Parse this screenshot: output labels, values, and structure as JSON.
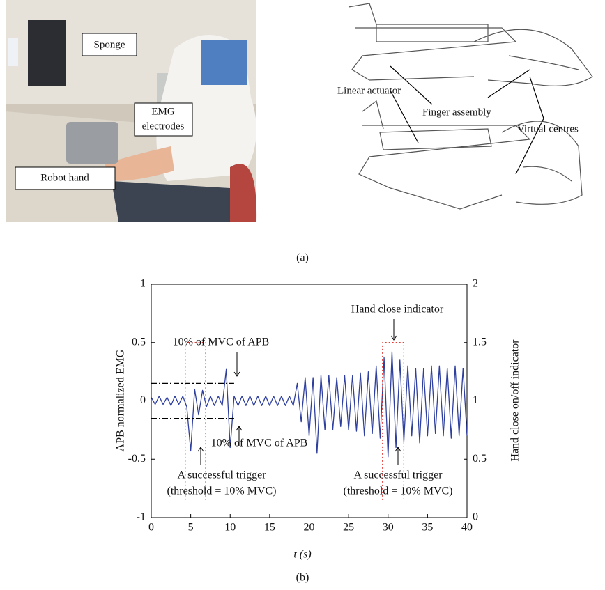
{
  "panel_a": {
    "photo_labels": [
      "Sponge",
      "EMG",
      "electrodes",
      "Robot hand"
    ],
    "drawing_labels": [
      "Linear actuator",
      "Finger assembly",
      "Virtual centres"
    ],
    "caption": "(a)"
  },
  "chart_data": {
    "type": "line",
    "caption": "(b)",
    "xlabel": "t (s)",
    "ylabel": "APB normalized EMG",
    "y2label": "Hand close on/off indicator",
    "xlim": [
      0,
      40
    ],
    "xticks": [
      0,
      5,
      10,
      15,
      20,
      25,
      30,
      35,
      40
    ],
    "ylim": [
      -1,
      1
    ],
    "yticks": [
      -1,
      -0.5,
      0,
      0.5,
      1
    ],
    "y2lim": [
      0,
      2
    ],
    "y2ticks": [
      0,
      0.5,
      1,
      1.5,
      2
    ],
    "series": [
      {
        "color": "#2e3f9e",
        "style": "solid",
        "x": [
          0,
          0.5,
          1,
          1.5,
          2,
          2.5,
          3,
          3.5,
          4,
          4.5,
          5,
          5.5,
          6,
          6.5,
          7,
          7.5,
          8,
          8.5,
          9,
          9.5,
          10,
          10.5,
          11,
          11.5,
          12,
          12.5,
          13,
          13.5,
          14,
          14.5,
          15,
          15.5,
          16,
          16.5,
          17,
          17.5,
          18,
          18.5,
          19,
          19.5,
          20,
          20.5,
          21,
          21.5,
          22,
          22.5,
          23,
          23.5,
          24,
          24.5,
          25,
          25.5,
          26,
          26.5,
          27,
          27.5,
          28,
          28.5,
          29,
          29.5,
          30,
          30.5,
          31,
          31.5,
          32,
          32.5,
          33,
          33.5,
          34,
          34.5,
          35,
          35.5,
          36,
          36.5,
          37,
          37.5,
          38,
          38.5,
          39,
          39.5,
          40
        ],
        "values": [
          0.03,
          -0.03,
          0.04,
          -0.03,
          0.03,
          -0.04,
          0.04,
          -0.03,
          0.04,
          -0.05,
          -0.43,
          0.1,
          -0.12,
          0.09,
          -0.05,
          0.04,
          -0.04,
          0.04,
          -0.04,
          0.27,
          -0.4,
          0.04,
          -0.04,
          0.04,
          -0.04,
          0.04,
          -0.04,
          0.04,
          -0.04,
          0.04,
          -0.04,
          0.04,
          -0.04,
          0.04,
          -0.04,
          0.04,
          -0.04,
          0.15,
          -0.18,
          0.2,
          -0.3,
          0.2,
          -0.45,
          0.22,
          -0.25,
          0.22,
          -0.25,
          0.2,
          -0.22,
          0.22,
          -0.25,
          0.22,
          -0.26,
          0.24,
          -0.3,
          0.25,
          -0.28,
          0.3,
          -0.32,
          0.37,
          -0.48,
          0.42,
          -0.4,
          0.35,
          -0.35,
          0.3,
          -0.3,
          0.28,
          -0.36,
          0.28,
          -0.3,
          0.3,
          -0.28,
          0.3,
          -0.3,
          0.28,
          -0.32,
          0.3,
          -0.3,
          0.28,
          -0.3
        ]
      },
      {
        "color": "#000000",
        "style": "dashdot",
        "x": [
          0,
          10.5
        ],
        "values": [
          0.15,
          0.15
        ]
      },
      {
        "color": "#000000",
        "style": "dashdot",
        "x": [
          0,
          10.5
        ],
        "values": [
          -0.15,
          -0.15
        ]
      },
      {
        "color": "#e0201b",
        "style": "dotted",
        "axis": "y2",
        "x": [
          4.3,
          4.3,
          6.9,
          6.9
        ],
        "values": [
          0.15,
          1.5,
          1.5,
          0.15
        ]
      },
      {
        "color": "#e0201b",
        "style": "dotted",
        "axis": "y2",
        "x": [
          29.3,
          29.3,
          32,
          32
        ],
        "values": [
          0.15,
          1.5,
          1.5,
          0.15
        ]
      }
    ],
    "annotations": [
      "10% of MVC of APB",
      "10% of MVC of APB",
      "Hand close indicator",
      "A successful trigger",
      "(threshold = 10% MVC)",
      "A successful trigger",
      "(threshold = 10% MVC)"
    ]
  }
}
